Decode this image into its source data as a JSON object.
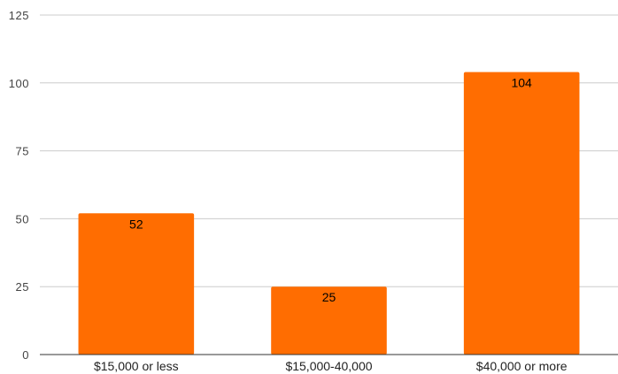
{
  "chart_data": {
    "type": "bar",
    "categories": [
      "$15,000 or less",
      "$15,000-40,000",
      "$40,000 or more"
    ],
    "series": [
      {
        "values": [
          52,
          25,
          104
        ],
        "color": "#ff6d01"
      }
    ],
    "data_labels": [
      "52",
      "25",
      "104"
    ],
    "ylim": [
      0,
      125
    ],
    "yticks": [
      "0",
      "25",
      "50",
      "75",
      "100",
      "125"
    ],
    "grid": true,
    "legend": "none"
  }
}
